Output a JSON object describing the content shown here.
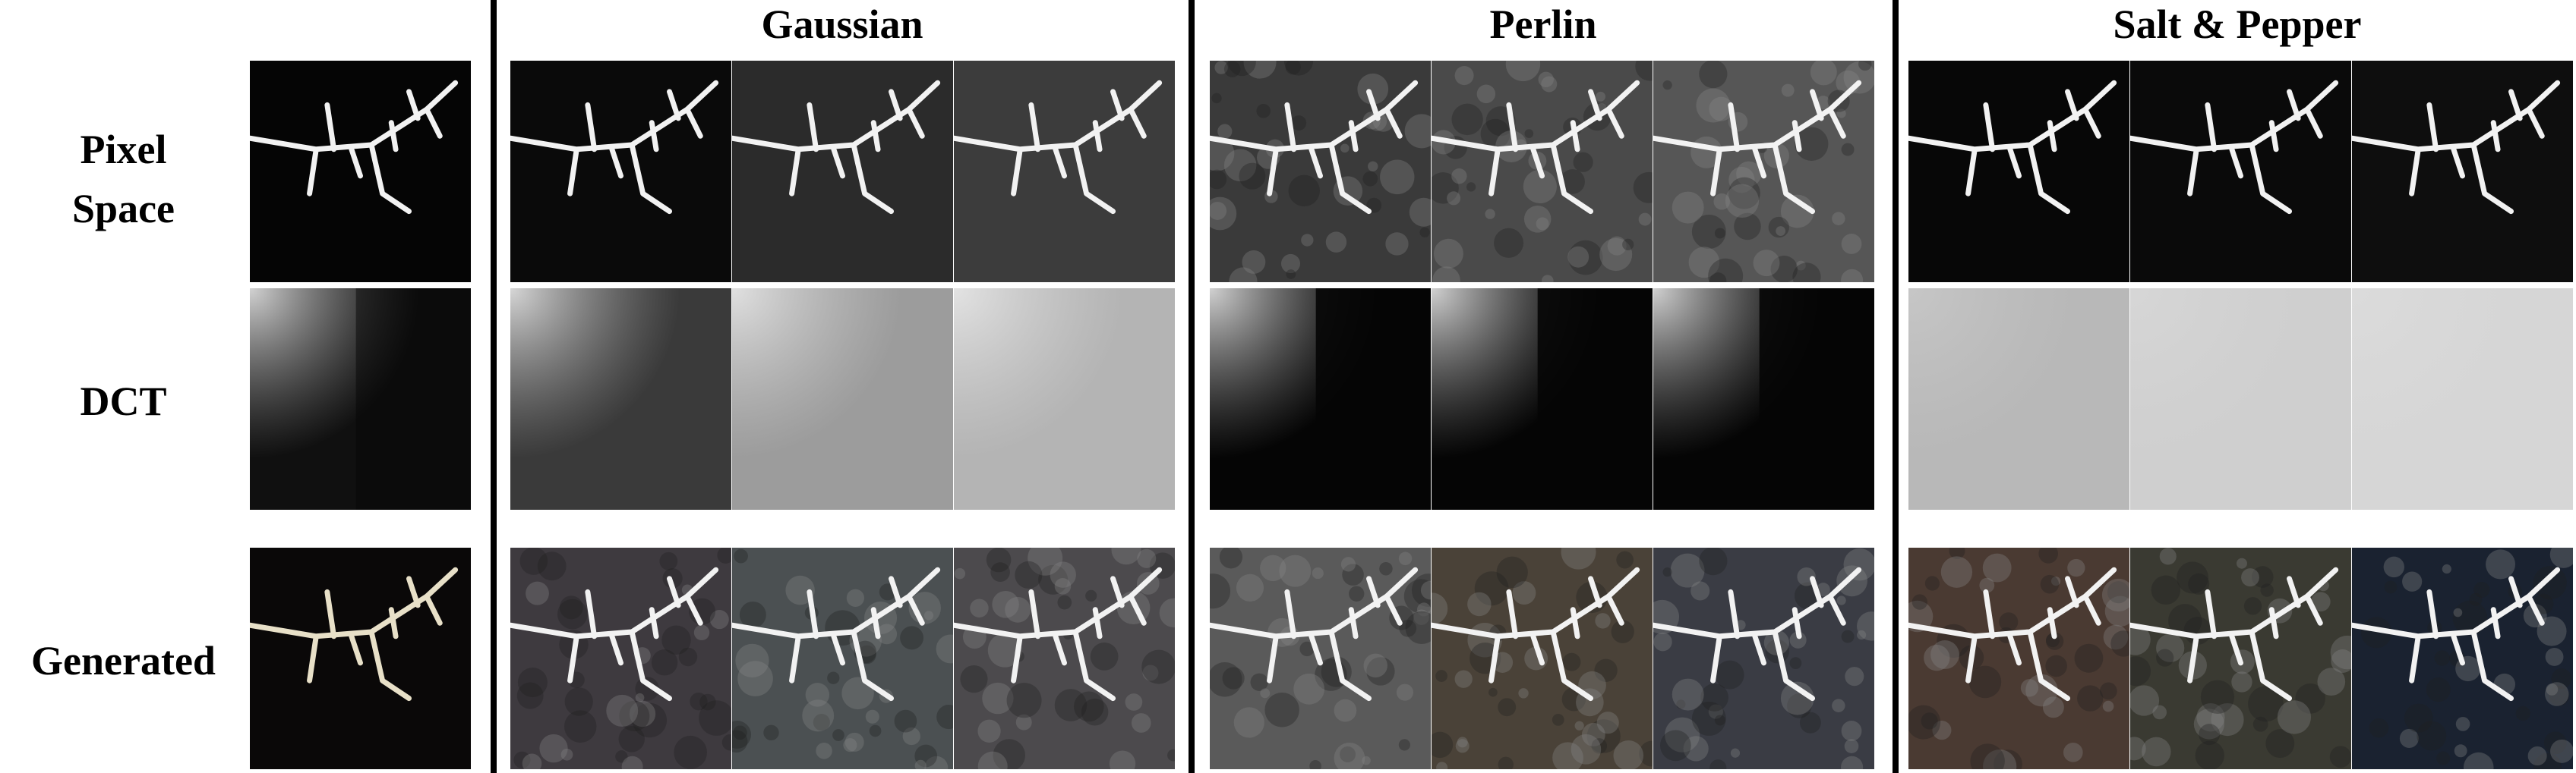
{
  "column_groups": [
    {
      "label": "Gaussian"
    },
    {
      "label": "Perlin"
    },
    {
      "label": "Salt & Pepper"
    }
  ],
  "row_labels": {
    "pixel": [
      "Pixel",
      "Space"
    ],
    "dct": "DCT",
    "generated": "Generated"
  },
  "panels": [
    {
      "row": "pixel",
      "group": "reference",
      "level": 0,
      "bg": "#050505",
      "noise": "none"
    },
    {
      "row": "pixel",
      "group": "gaussian",
      "level": 1,
      "bg": "#0a0a0a",
      "noise": "gaussian"
    },
    {
      "row": "pixel",
      "group": "gaussian",
      "level": 2,
      "bg": "#2b2b2b",
      "noise": "gaussian"
    },
    {
      "row": "pixel",
      "group": "gaussian",
      "level": 3,
      "bg": "#3c3c3c",
      "noise": "gaussian"
    },
    {
      "row": "pixel",
      "group": "perlin",
      "level": 1,
      "bg": "#3a3a3a",
      "noise": "perlin"
    },
    {
      "row": "pixel",
      "group": "perlin",
      "level": 2,
      "bg": "#4a4a4a",
      "noise": "perlin"
    },
    {
      "row": "pixel",
      "group": "perlin",
      "level": 3,
      "bg": "#565656",
      "noise": "perlin"
    },
    {
      "row": "pixel",
      "group": "salt_pepper",
      "level": 1,
      "bg": "#070707",
      "noise": "salt_pepper"
    },
    {
      "row": "pixel",
      "group": "salt_pepper",
      "level": 2,
      "bg": "#0a0a0a",
      "noise": "salt_pepper"
    },
    {
      "row": "pixel",
      "group": "salt_pepper",
      "level": 3,
      "bg": "#0e0e0e",
      "noise": "salt_pepper"
    },
    {
      "row": "dct",
      "group": "reference",
      "level": 0,
      "bg": "#101010",
      "noise": "none"
    },
    {
      "row": "dct",
      "group": "gaussian",
      "level": 1,
      "bg": "#3a3a3a",
      "noise": "gaussian"
    },
    {
      "row": "dct",
      "group": "gaussian",
      "level": 2,
      "bg": "#9c9c9c",
      "noise": "gaussian"
    },
    {
      "row": "dct",
      "group": "gaussian",
      "level": 3,
      "bg": "#b4b4b4",
      "noise": "gaussian"
    },
    {
      "row": "dct",
      "group": "perlin",
      "level": 1,
      "bg": "#050505",
      "noise": "perlin"
    },
    {
      "row": "dct",
      "group": "perlin",
      "level": 2,
      "bg": "#050505",
      "noise": "perlin"
    },
    {
      "row": "dct",
      "group": "perlin",
      "level": 3,
      "bg": "#050505",
      "noise": "perlin"
    },
    {
      "row": "dct",
      "group": "salt_pepper",
      "level": 1,
      "bg": "#b8b8b8",
      "noise": "salt_pepper"
    },
    {
      "row": "dct",
      "group": "salt_pepper",
      "level": 2,
      "bg": "#cfcfcf",
      "noise": "salt_pepper"
    },
    {
      "row": "dct",
      "group": "salt_pepper",
      "level": 3,
      "bg": "#d6d6d6",
      "noise": "salt_pepper"
    },
    {
      "row": "generated",
      "group": "reference",
      "level": 0,
      "bg": "#0a0808",
      "noise": "none"
    },
    {
      "row": "generated",
      "group": "gaussian",
      "level": 1,
      "bg": "#3e3a3f",
      "noise": "gaussian"
    },
    {
      "row": "generated",
      "group": "gaussian",
      "level": 2,
      "bg": "#4b5052",
      "noise": "gaussian"
    },
    {
      "row": "generated",
      "group": "gaussian",
      "level": 3,
      "bg": "#4c4a4d",
      "noise": "gaussian"
    },
    {
      "row": "generated",
      "group": "perlin",
      "level": 1,
      "bg": "#5a5a5a",
      "noise": "perlin"
    },
    {
      "row": "generated",
      "group": "perlin",
      "level": 2,
      "bg": "#4a4238",
      "noise": "perlin"
    },
    {
      "row": "generated",
      "group": "perlin",
      "level": 3,
      "bg": "#3a3c44",
      "noise": "perlin"
    },
    {
      "row": "generated",
      "group": "salt_pepper",
      "level": 1,
      "bg": "#4a3a32",
      "noise": "salt_pepper"
    },
    {
      "row": "generated",
      "group": "salt_pepper",
      "level": 2,
      "bg": "#3a3a32",
      "noise": "salt_pepper"
    },
    {
      "row": "generated",
      "group": "salt_pepper",
      "level": 3,
      "bg": "#1a2230",
      "noise": "salt_pepper"
    }
  ]
}
